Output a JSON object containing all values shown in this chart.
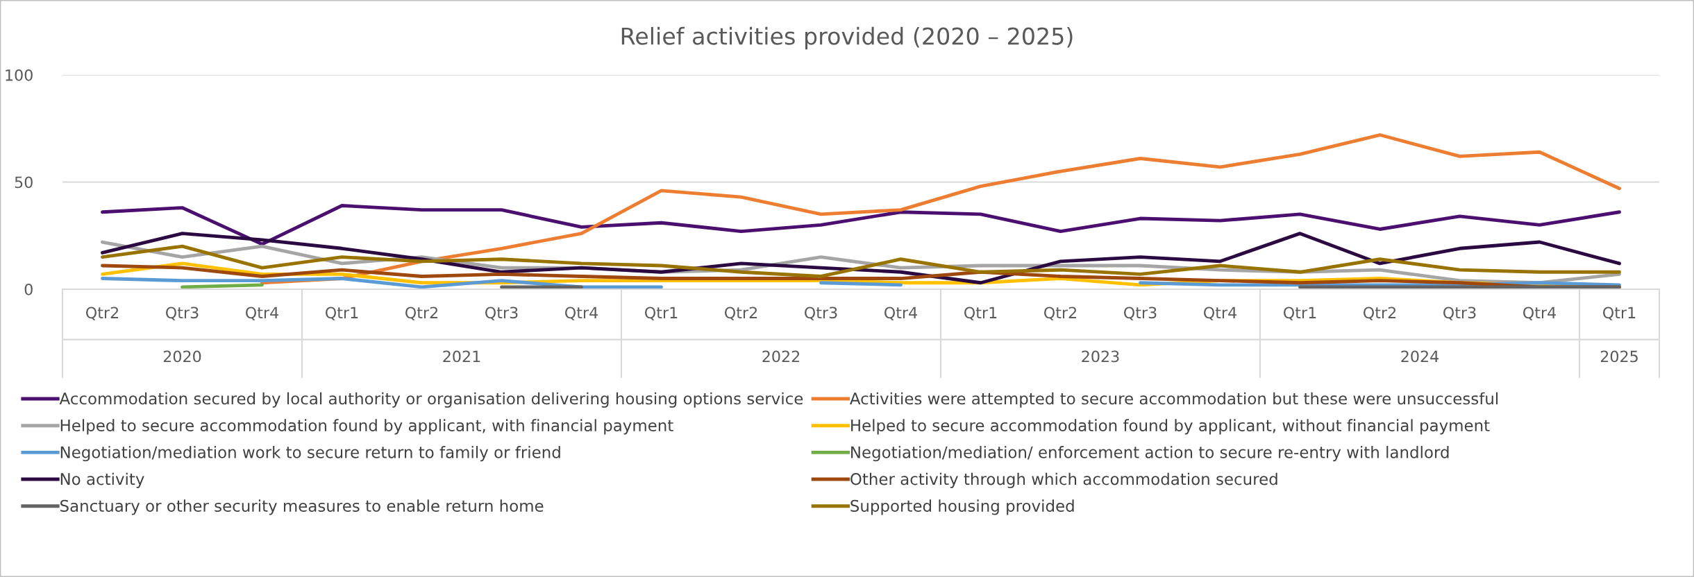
{
  "chart_data": {
    "type": "line",
    "title": "Relief activities provided (2020 – 2025)",
    "categories": [
      "Qtr2",
      "Qtr3",
      "Qtr4",
      "Qtr1",
      "Qtr2",
      "Qtr3",
      "Qtr4",
      "Qtr1",
      "Qtr2",
      "Qtr3",
      "Qtr4",
      "Qtr1",
      "Qtr2",
      "Qtr3",
      "Qtr4",
      "Qtr1",
      "Qtr2",
      "Qtr3",
      "Qtr4",
      "Qtr1"
    ],
    "annotations": [
      "2020",
      "2021",
      "2022",
      "2023",
      "2024",
      "2025"
    ],
    "ylim": [
      0,
      100
    ],
    "yticks": [
      0,
      50,
      100
    ],
    "grid": "y",
    "legend": "bottom",
    "line_style": "solid",
    "marker": "none",
    "series": [
      {
        "name": "Accommodation secured by local authority or organisation delivering housing options service",
        "color": "#4b0f70",
        "values": [
          36,
          38,
          21,
          39,
          37,
          37,
          29,
          31,
          27,
          30,
          36,
          35,
          27,
          33,
          32,
          35,
          28,
          34,
          30,
          36
        ]
      },
      {
        "name": "Activities were attempted to secure accommodation but these were unsuccessful",
        "color": "#ed7d31",
        "values": [
          null,
          null,
          3,
          5,
          13,
          19,
          26,
          46,
          43,
          35,
          37,
          48,
          55,
          61,
          57,
          63,
          72,
          62,
          64,
          47
        ]
      },
      {
        "name": "Helped to secure accommodation found by applicant, with financial payment",
        "color": "#a5a5a5",
        "values": [
          22,
          15,
          20,
          12,
          15,
          10,
          10,
          8,
          9,
          15,
          10,
          11,
          11,
          11,
          9,
          8,
          9,
          4,
          3,
          7
        ]
      },
      {
        "name": "Helped to secure accommodation found by applicant, without financial payment",
        "color": "#ffc000",
        "values": [
          7,
          12,
          7,
          7,
          3,
          3,
          4,
          4,
          4,
          4,
          3,
          3,
          5,
          2,
          4,
          4,
          5,
          3,
          2,
          1
        ]
      },
      {
        "name": "Negotiation/mediation work to secure return to family or friend",
        "color": "#5b9bd5",
        "values": [
          5,
          4,
          4,
          5,
          1,
          4,
          1,
          1,
          null,
          3,
          2,
          null,
          null,
          3,
          2,
          2,
          2,
          2,
          3,
          2
        ]
      },
      {
        "name": "Negotiation/mediation/ enforcement action to secure re-entry with landlord",
        "color": "#70ad47",
        "values": [
          null,
          1,
          2,
          null,
          null,
          null,
          null,
          null,
          null,
          null,
          null,
          null,
          null,
          null,
          null,
          null,
          null,
          null,
          null,
          null
        ]
      },
      {
        "name": "No activity",
        "color": "#2a0a40",
        "values": [
          17,
          26,
          23,
          19,
          14,
          8,
          10,
          8,
          12,
          10,
          8,
          3,
          13,
          15,
          13,
          26,
          12,
          19,
          22,
          12
        ]
      },
      {
        "name": "Other activity through which accommodation secured",
        "color": "#9e480e",
        "values": [
          11,
          10,
          6,
          9,
          6,
          7,
          6,
          5,
          5,
          5,
          5,
          8,
          6,
          5,
          4,
          3,
          4,
          3,
          1,
          1
        ]
      },
      {
        "name": "Sanctuary or other security measures to enable return home",
        "color": "#636363",
        "values": [
          null,
          null,
          null,
          null,
          null,
          1,
          1,
          null,
          null,
          null,
          null,
          null,
          null,
          null,
          null,
          1,
          1,
          1,
          1,
          1
        ]
      },
      {
        "name": "Supported housing provided",
        "color": "#997300",
        "values": [
          15,
          20,
          10,
          15,
          13,
          14,
          12,
          11,
          8,
          6,
          14,
          8,
          9,
          7,
          11,
          8,
          14,
          9,
          8,
          8
        ]
      }
    ]
  }
}
